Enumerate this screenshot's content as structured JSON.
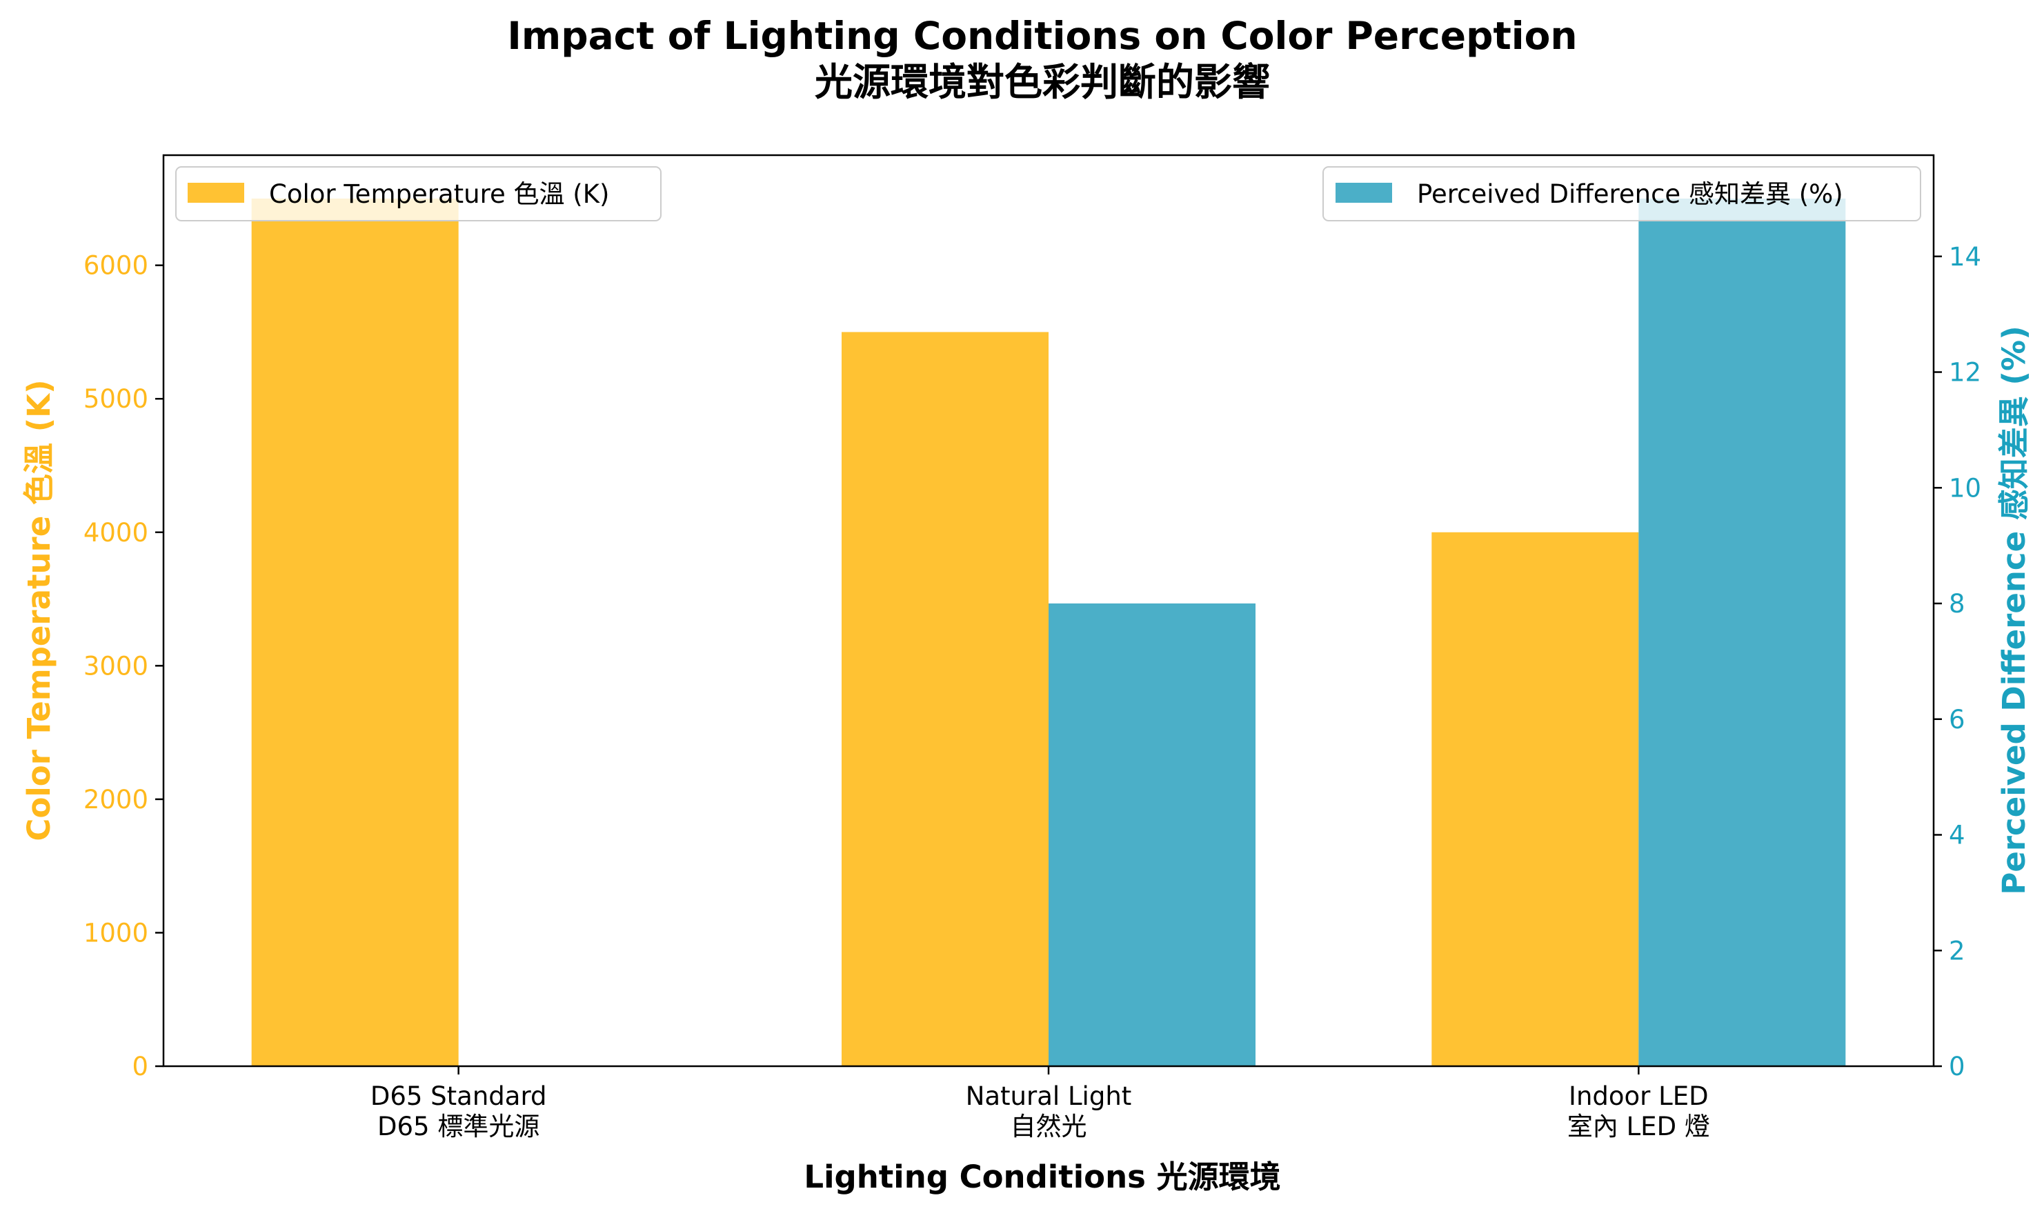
{
  "title": {
    "line1": "Impact of Lighting Conditions on Color Perception",
    "line2": "光源環境對色彩判斷的影響"
  },
  "colors": {
    "temperature": "#FFC233",
    "difference": "#4BAFC8",
    "left_axis": "#FFB81C",
    "right_axis": "#1BA1BF"
  },
  "chart_data": {
    "type": "bar",
    "categories": [
      {
        "en": "D65 Standard",
        "zh": "D65 標準光源"
      },
      {
        "en": "Natural Light",
        "zh": "自然光"
      },
      {
        "en": "Indoor LED",
        "zh": "室內 LED 燈"
      }
    ],
    "series": [
      {
        "name": "Color Temperature 色溫 (K)",
        "axis": "left",
        "values": [
          6500,
          5500,
          4000
        ]
      },
      {
        "name": "Perceived Difference 感知差異 (%)",
        "axis": "right",
        "values": [
          0,
          8,
          15
        ]
      }
    ],
    "xlabel": "Lighting Conditions 光源環境",
    "ylabel_left": "Color Temperature 色溫 (K)",
    "ylabel_right": "Perceived Difference 感知差異 (%)",
    "ylim_left": [
      0,
      6825
    ],
    "ylim_right": [
      0,
      15.75
    ],
    "yticks_left": [
      0,
      1000,
      2000,
      3000,
      4000,
      5000,
      6000
    ],
    "yticks_right": [
      0,
      2,
      4,
      6,
      8,
      10,
      12,
      14
    ],
    "legend_placement": [
      "upper-left",
      "upper-right"
    ],
    "grid": false
  }
}
